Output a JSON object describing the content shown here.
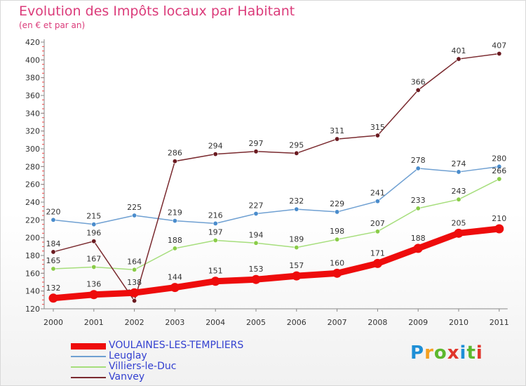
{
  "title": "Evolution des Impôts locaux par Habitant",
  "subtitle": "(en € et par an)",
  "brand": {
    "text": "Proxiti",
    "colors": [
      "#1e8fd6",
      "#f5a020",
      "#5cb82e",
      "#e0362c",
      "#1e8fd6",
      "#5cb82e",
      "#e0362c"
    ]
  },
  "chart_data": {
    "type": "line",
    "x": [
      "2000",
      "2001",
      "2002",
      "2003",
      "2004",
      "2005",
      "2006",
      "2007",
      "2008",
      "2009",
      "2010",
      "2011"
    ],
    "ylim": [
      120,
      420
    ],
    "yticks": [
      120,
      140,
      160,
      180,
      200,
      220,
      240,
      260,
      280,
      300,
      320,
      340,
      360,
      380,
      400,
      420
    ],
    "grid": false,
    "legend_position": "bottom-left",
    "series": [
      {
        "name": "VOULAINES-LES-TEMPLIERS",
        "color": "#ee0c0c",
        "marker": "#ee0c0c",
        "width": 9,
        "values": [
          132,
          136,
          138,
          144,
          151,
          153,
          157,
          160,
          171,
          188,
          205,
          210
        ]
      },
      {
        "name": "Leuglay",
        "color": "#6fa0d2",
        "marker": "#4a8ccc",
        "width": 1.5,
        "values": [
          220,
          215,
          225,
          219,
          216,
          227,
          232,
          229,
          241,
          278,
          274,
          280
        ]
      },
      {
        "name": "Villiers-le-Duc",
        "color": "#a6de7c",
        "marker": "#8acc48",
        "width": 1.5,
        "values": [
          165,
          167,
          164,
          188,
          197,
          194,
          189,
          198,
          207,
          233,
          243,
          266
        ]
      },
      {
        "name": "Vanvey",
        "color": "#7a2a2f",
        "marker": "#6a1a20",
        "width": 1.5,
        "values": [
          184,
          196,
          129,
          286,
          294,
          297,
          295,
          311,
          315,
          366,
          401,
          407
        ]
      }
    ]
  }
}
